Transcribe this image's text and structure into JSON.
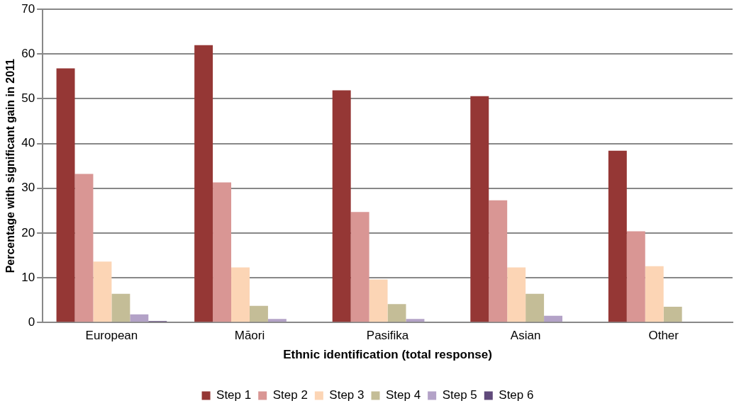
{
  "chart_data": {
    "type": "bar",
    "xlabel": "Ethnic identification (total response)",
    "ylabel": "Percentage with significant gain in 2011",
    "categories": [
      "European",
      "Māori",
      "Pasifika",
      "Asian",
      "Other"
    ],
    "series": [
      {
        "name": "Step 1",
        "color": "#953735",
        "values": [
          56.8,
          62.0,
          51.9,
          50.6,
          38.4
        ]
      },
      {
        "name": "Step 2",
        "color": "#d99694",
        "values": [
          33.2,
          31.3,
          24.7,
          27.3,
          20.4
        ]
      },
      {
        "name": "Step 3",
        "color": "#fcd5b5",
        "values": [
          13.6,
          12.3,
          9.6,
          12.3,
          12.6
        ]
      },
      {
        "name": "Step 4",
        "color": "#c4bd97",
        "values": [
          6.4,
          3.7,
          4.1,
          6.4,
          3.5
        ]
      },
      {
        "name": "Step 5",
        "color": "#b3a2c7",
        "values": [
          1.8,
          0.8,
          0.8,
          1.5,
          null
        ]
      },
      {
        "name": "Step 6",
        "color": "#604a7b",
        "values": [
          0.3,
          null,
          null,
          null,
          null
        ]
      }
    ],
    "ylim": [
      0,
      70
    ],
    "yticks": [
      0,
      10,
      20,
      30,
      40,
      50,
      60,
      70
    ],
    "grid": "y",
    "legend": "bottom"
  }
}
